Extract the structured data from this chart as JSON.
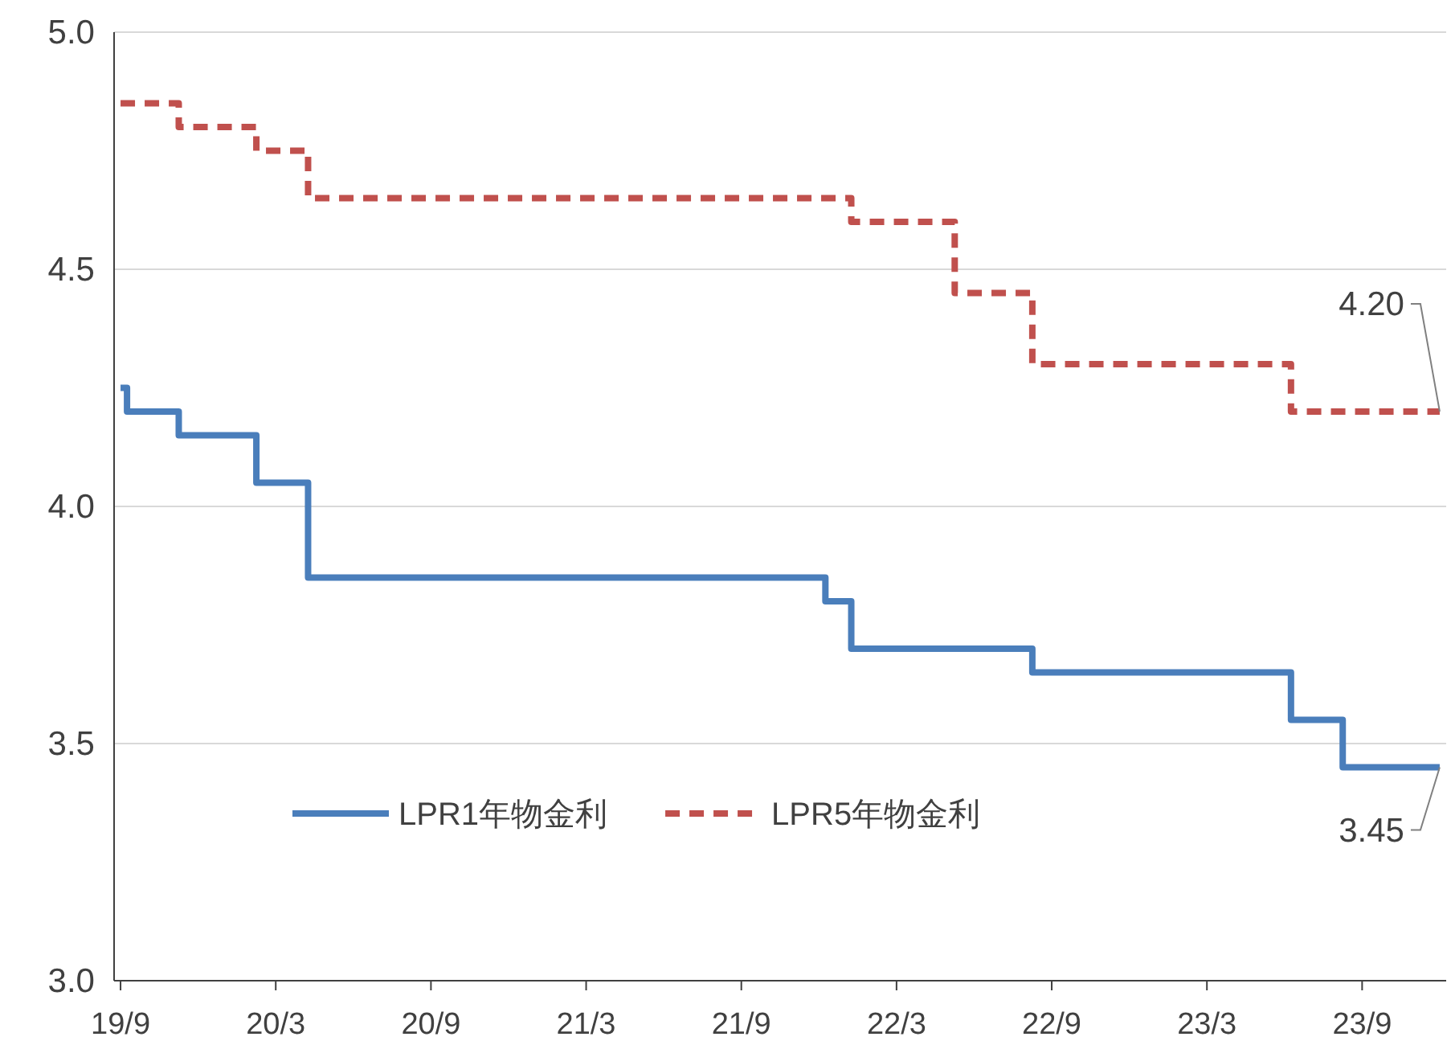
{
  "chart_data": {
    "type": "step",
    "legend": "bottom",
    "grid": "y",
    "categories": [
      "19/9",
      null,
      null,
      null,
      null,
      null,
      null,
      null,
      null,
      null,
      null,
      null,
      "20/3",
      null,
      null,
      null,
      null,
      null,
      null,
      null,
      null,
      null,
      null,
      null,
      "20/9",
      null,
      null,
      null,
      null,
      null,
      null,
      null,
      null,
      null,
      null,
      null,
      "21/3",
      null,
      null,
      null,
      null,
      null,
      null,
      null,
      null,
      null,
      null,
      null,
      "21/9",
      null,
      null,
      null,
      null,
      null,
      null,
      null,
      null,
      null,
      null,
      null,
      "22/3",
      null,
      null,
      null,
      null,
      null,
      null,
      null,
      null,
      null,
      null,
      null,
      "22/9",
      null,
      null,
      null,
      null,
      null,
      null,
      null,
      null,
      null,
      null,
      null,
      "23/3",
      null,
      null,
      null,
      null,
      null,
      null,
      null,
      null,
      null,
      null,
      null,
      "23/9",
      null,
      null,
      null,
      null,
      null,
      null
    ],
    "ylim": [
      3.0,
      5.0
    ],
    "yticks": [
      {
        "value": 3.0,
        "label": "3.0"
      },
      {
        "value": 3.5,
        "label": "3.5"
      },
      {
        "value": 4.0,
        "label": "4.0"
      },
      {
        "value": 4.5,
        "label": "4.5"
      },
      {
        "value": 5.0,
        "label": "5.0"
      }
    ],
    "series": [
      {
        "name": "LPR1年物金利",
        "color": "#4a7ebb",
        "line_style": "solid",
        "values": [
          4.25,
          4.2,
          4.2,
          4.2,
          4.2,
          4.15,
          4.15,
          4.15,
          4.15,
          4.15,
          4.15,
          4.05,
          4.05,
          4.05,
          4.05,
          3.85,
          3.85,
          3.85,
          3.85,
          3.85,
          3.85,
          3.85,
          3.85,
          3.85,
          3.85,
          3.85,
          3.85,
          3.85,
          3.85,
          3.85,
          3.85,
          3.85,
          3.85,
          3.85,
          3.85,
          3.85,
          3.85,
          3.85,
          3.85,
          3.85,
          3.85,
          3.85,
          3.85,
          3.85,
          3.85,
          3.85,
          3.85,
          3.85,
          3.85,
          3.85,
          3.85,
          3.85,
          3.85,
          3.85,
          3.85,
          3.8,
          3.8,
          3.7,
          3.7,
          3.7,
          3.7,
          3.7,
          3.7,
          3.7,
          3.7,
          3.7,
          3.7,
          3.7,
          3.7,
          3.7,
          3.7,
          3.65,
          3.65,
          3.65,
          3.65,
          3.65,
          3.65,
          3.65,
          3.65,
          3.65,
          3.65,
          3.65,
          3.65,
          3.65,
          3.65,
          3.65,
          3.65,
          3.65,
          3.65,
          3.65,
          3.65,
          3.55,
          3.55,
          3.55,
          3.55,
          3.45,
          3.45,
          3.45,
          3.45,
          3.45,
          3.45,
          3.45,
          3.45
        ]
      },
      {
        "name": "LPR5年物金利",
        "color": "#c0504d",
        "line_style": "dashed",
        "values": [
          4.85,
          4.85,
          4.85,
          4.85,
          4.85,
          4.8,
          4.8,
          4.8,
          4.8,
          4.8,
          4.8,
          4.75,
          4.75,
          4.75,
          4.75,
          4.65,
          4.65,
          4.65,
          4.65,
          4.65,
          4.65,
          4.65,
          4.65,
          4.65,
          4.65,
          4.65,
          4.65,
          4.65,
          4.65,
          4.65,
          4.65,
          4.65,
          4.65,
          4.65,
          4.65,
          4.65,
          4.65,
          4.65,
          4.65,
          4.65,
          4.65,
          4.65,
          4.65,
          4.65,
          4.65,
          4.65,
          4.65,
          4.65,
          4.65,
          4.65,
          4.65,
          4.65,
          4.65,
          4.65,
          4.65,
          4.65,
          4.65,
          4.6,
          4.6,
          4.6,
          4.6,
          4.6,
          4.6,
          4.6,
          4.6,
          4.45,
          4.45,
          4.45,
          4.45,
          4.45,
          4.45,
          4.3,
          4.3,
          4.3,
          4.3,
          4.3,
          4.3,
          4.3,
          4.3,
          4.3,
          4.3,
          4.3,
          4.3,
          4.3,
          4.3,
          4.3,
          4.3,
          4.3,
          4.3,
          4.3,
          4.3,
          4.2,
          4.2,
          4.2,
          4.2,
          4.2,
          4.2,
          4.2,
          4.2,
          4.2,
          4.2,
          4.2,
          4.2
        ]
      }
    ],
    "annotations": [
      {
        "text": "4.20",
        "y": 4.2
      },
      {
        "text": "3.45",
        "y": 3.45
      }
    ]
  }
}
